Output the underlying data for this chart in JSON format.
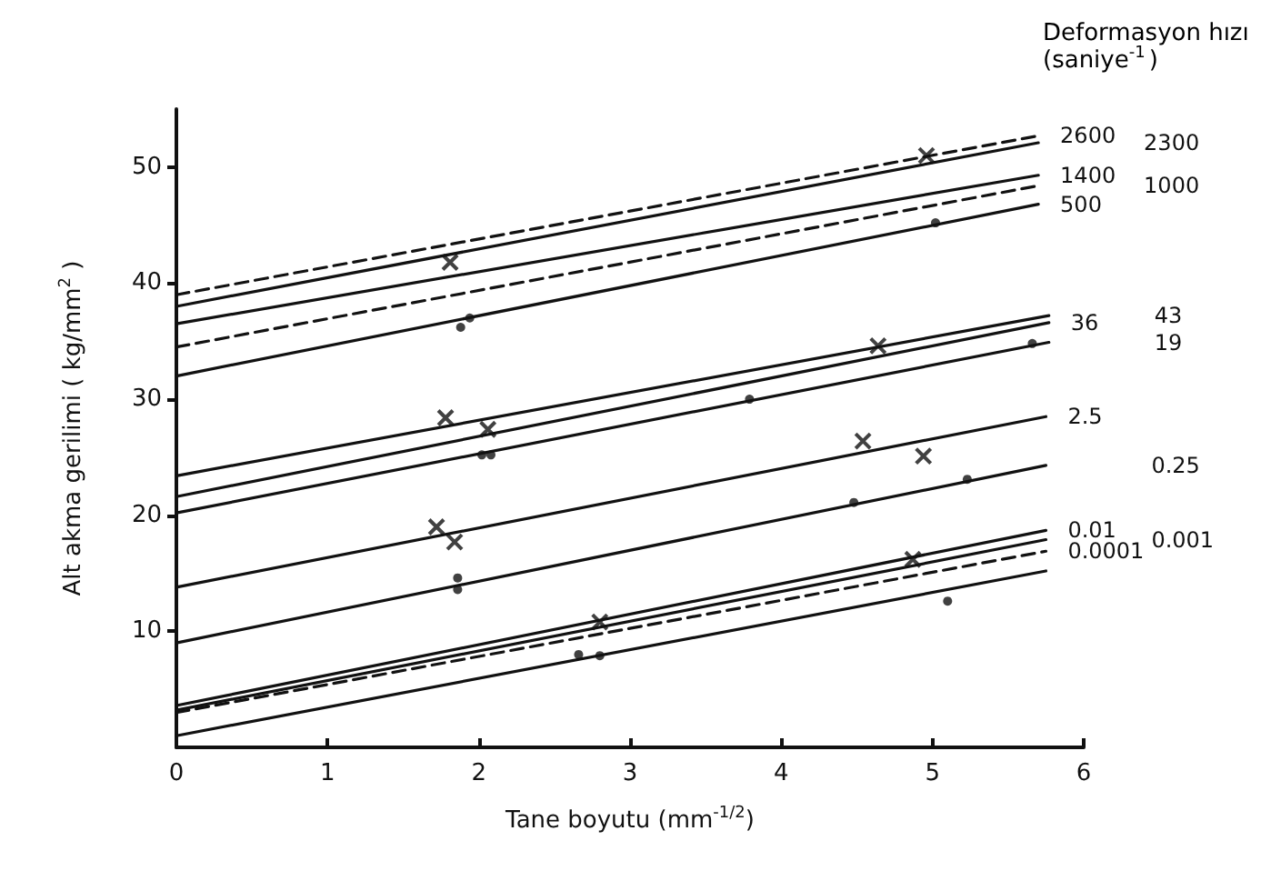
{
  "chart_data": {
    "type": "line",
    "xlabel": "Tane boyutu (mm$^{-1/2}$)",
    "ylabel": "Alt akma gerilimi ( kg/mm$^{2}$ )",
    "legend_title": "Deformasyon hızı (saniye$^{-1}$)",
    "xlim": [
      0,
      6
    ],
    "xticks": [
      0,
      1,
      2,
      3,
      4,
      5,
      6
    ],
    "ylim": [
      0,
      55
    ],
    "yticks": [
      10,
      20,
      30,
      40,
      50
    ],
    "legend": false,
    "grid": false,
    "marker": "none",
    "series": [
      {
        "name": "2600",
        "color": "#111111",
        "line_style": "dashed",
        "x": [
          0,
          5.7
        ],
        "values": [
          39,
          52.7
        ]
      },
      {
        "name": "2300",
        "color": "#111111",
        "line_style": "solid",
        "x": [
          0,
          5.7
        ],
        "values": [
          38,
          52.1
        ]
      },
      {
        "name": "1400",
        "color": "#111111",
        "line_style": "solid",
        "x": [
          0,
          5.7
        ],
        "values": [
          36.5,
          49.3
        ]
      },
      {
        "name": "1000",
        "color": "#111111",
        "line_style": "dashed",
        "x": [
          0,
          5.7
        ],
        "values": [
          34.5,
          48.4
        ]
      },
      {
        "name": "500",
        "color": "#111111",
        "line_style": "solid",
        "x": [
          0,
          5.7
        ],
        "values": [
          32,
          46.8
        ]
      },
      {
        "name": "43",
        "color": "#111111",
        "line_style": "solid",
        "x": [
          0,
          5.77
        ],
        "values": [
          23.4,
          37.2
        ]
      },
      {
        "name": "36",
        "color": "#111111",
        "line_style": "solid",
        "x": [
          0,
          5.77
        ],
        "values": [
          21.6,
          36.6
        ]
      },
      {
        "name": "19",
        "color": "#111111",
        "line_style": "solid",
        "x": [
          0,
          5.77
        ],
        "values": [
          20.2,
          34.9
        ]
      },
      {
        "name": "2.5",
        "color": "#111111",
        "line_style": "solid",
        "x": [
          0,
          5.75
        ],
        "values": [
          13.8,
          28.5
        ]
      },
      {
        "name": "0.25",
        "color": "#111111",
        "line_style": "solid",
        "x": [
          0,
          5.75
        ],
        "values": [
          9,
          24.3
        ]
      },
      {
        "name": "0.01",
        "color": "#111111",
        "line_style": "solid",
        "x": [
          0,
          5.75
        ],
        "values": [
          3.6,
          18.7
        ]
      },
      {
        "name": "0.001",
        "color": "#111111",
        "line_style": "solid",
        "x": [
          0,
          5.75
        ],
        "values": [
          3.2,
          17.9
        ]
      },
      {
        "name": "0.0001",
        "color": "#111111",
        "line_style": "dashed",
        "x": [
          0,
          5.75
        ],
        "values": [
          3,
          16.9
        ]
      },
      {
        "color": "#111111",
        "line_style": "solid",
        "x": [
          0,
          5.75
        ],
        "values": [
          1,
          15.2
        ]
      },
      {
        "type": "scatter",
        "marker": "cross",
        "color": "#111111",
        "x": [
          1.81,
          4.96,
          1.78,
          2.06,
          4.64,
          1.72,
          1.84,
          4.54,
          4.94,
          2.8,
          4.87
        ],
        "values": [
          41.8,
          51,
          28.4,
          27.4,
          34.6,
          19,
          17.7,
          26.4,
          25.1,
          10.8,
          16.2
        ]
      },
      {
        "type": "scatter",
        "marker": "circle",
        "color": "#111111",
        "x": [
          1.88,
          1.94,
          5.02,
          2.02,
          2.08,
          3.79,
          5.66,
          1.86,
          1.86,
          4.48,
          5.23,
          2.66,
          2.8,
          5.1
        ],
        "values": [
          36.2,
          37,
          45.2,
          25.2,
          25.2,
          30,
          34.8,
          14.6,
          13.6,
          21.1,
          23.1,
          8,
          7.9,
          12.6
        ]
      }
    ]
  }
}
